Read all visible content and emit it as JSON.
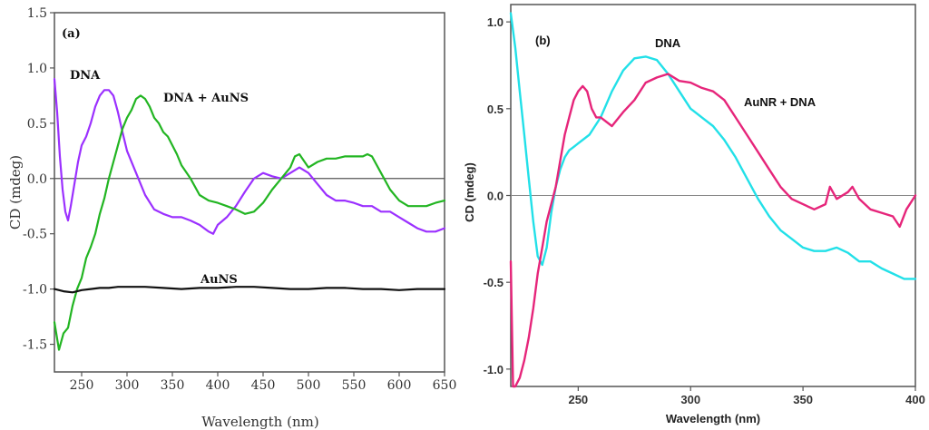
{
  "chart_data": [
    {
      "type": "line",
      "panel_label": "(a)",
      "xlabel": "Wavelength (nm)",
      "ylabel": "CD (mdeg)",
      "xlim": [
        220,
        650
      ],
      "ylim": [
        -1.75,
        1.5
      ],
      "xticks": [
        250,
        300,
        350,
        400,
        450,
        500,
        550,
        600,
        650
      ],
      "xtick_labels": [
        "250",
        "300",
        "350",
        "400",
        "450",
        "500",
        "550",
        "600",
        "650"
      ],
      "yticks": [
        1.5,
        1.0,
        0.5,
        0.0,
        -0.5,
        -1.0,
        -1.5
      ],
      "ytick_labels": [
        "1.5",
        "1.0",
        "0.5",
        "0.0",
        "-0.5",
        "-1.0",
        "-1.5"
      ],
      "zero_line": 0,
      "series": [
        {
          "name": "DNA",
          "label": "DNA",
          "color": "#9b30ff",
          "x": [
            220,
            223,
            226,
            229,
            232,
            235,
            238,
            242,
            246,
            250,
            255,
            260,
            265,
            270,
            275,
            280,
            285,
            290,
            295,
            300,
            310,
            320,
            330,
            340,
            350,
            360,
            370,
            380,
            390,
            395,
            400,
            410,
            420,
            430,
            440,
            450,
            460,
            470,
            480,
            490,
            500,
            510,
            520,
            530,
            540,
            550,
            560,
            570,
            580,
            590,
            600,
            610,
            620,
            630,
            640,
            650
          ],
          "y": [
            0.9,
            0.6,
            0.2,
            -0.1,
            -0.3,
            -0.38,
            -0.25,
            -0.05,
            0.15,
            0.3,
            0.38,
            0.5,
            0.65,
            0.75,
            0.8,
            0.8,
            0.75,
            0.6,
            0.42,
            0.25,
            0.05,
            -0.15,
            -0.28,
            -0.32,
            -0.35,
            -0.35,
            -0.38,
            -0.42,
            -0.48,
            -0.5,
            -0.42,
            -0.35,
            -0.25,
            -0.12,
            0.0,
            0.05,
            0.02,
            0.0,
            0.05,
            0.1,
            0.05,
            -0.05,
            -0.15,
            -0.2,
            -0.2,
            -0.22,
            -0.25,
            -0.25,
            -0.3,
            -0.3,
            -0.35,
            -0.4,
            -0.45,
            -0.48,
            -0.48,
            -0.45
          ]
        },
        {
          "name": "DNA + AuNS",
          "label": "DNA + AuNS",
          "color": "#22b522",
          "x": [
            220,
            225,
            230,
            235,
            240,
            245,
            250,
            255,
            260,
            265,
            270,
            275,
            280,
            285,
            290,
            295,
            300,
            305,
            310,
            315,
            320,
            325,
            330,
            335,
            340,
            345,
            350,
            355,
            360,
            370,
            380,
            390,
            400,
            410,
            420,
            430,
            440,
            450,
            460,
            470,
            480,
            485,
            490,
            500,
            510,
            520,
            530,
            540,
            550,
            560,
            565,
            570,
            580,
            590,
            600,
            610,
            620,
            630,
            640,
            650
          ],
          "y": [
            -1.3,
            -1.55,
            -1.4,
            -1.35,
            -1.15,
            -1.0,
            -0.9,
            -0.72,
            -0.62,
            -0.5,
            -0.32,
            -0.18,
            0.0,
            0.15,
            0.3,
            0.45,
            0.55,
            0.62,
            0.72,
            0.75,
            0.72,
            0.65,
            0.55,
            0.5,
            0.42,
            0.38,
            0.3,
            0.22,
            0.12,
            0.0,
            -0.15,
            -0.2,
            -0.22,
            -0.25,
            -0.28,
            -0.32,
            -0.3,
            -0.22,
            -0.1,
            0.0,
            0.1,
            0.2,
            0.22,
            0.1,
            0.15,
            0.18,
            0.18,
            0.2,
            0.2,
            0.2,
            0.22,
            0.2,
            0.05,
            -0.1,
            -0.2,
            -0.25,
            -0.25,
            -0.25,
            -0.22,
            -0.2
          ]
        },
        {
          "name": "AuNS",
          "label": "AuNS",
          "color": "#111111",
          "x": [
            220,
            230,
            240,
            250,
            260,
            270,
            280,
            290,
            300,
            320,
            340,
            360,
            380,
            400,
            420,
            440,
            460,
            480,
            500,
            520,
            540,
            560,
            580,
            600,
            620,
            640,
            650
          ],
          "y": [
            -1.0,
            -1.02,
            -1.03,
            -1.01,
            -1.0,
            -0.99,
            -0.99,
            -0.98,
            -0.98,
            -0.98,
            -0.99,
            -1.0,
            -0.99,
            -0.99,
            -0.98,
            -0.98,
            -0.99,
            -1.0,
            -1.0,
            -0.99,
            -0.99,
            -1.0,
            -1.0,
            -1.01,
            -1.0,
            -1.0,
            -1.0
          ]
        }
      ]
    },
    {
      "type": "line",
      "panel_label": "(b)",
      "xlabel": "Wavelength (nm)",
      "ylabel": "CD (mdeg)",
      "xlim": [
        220,
        400
      ],
      "ylim": [
        -1.1,
        1.1
      ],
      "xticks": [
        250,
        300,
        350,
        400
      ],
      "xtick_labels": [
        "250",
        "300",
        "350",
        "400"
      ],
      "yticks": [
        1.0,
        0.5,
        0.0,
        -0.5,
        -1.0
      ],
      "ytick_labels": [
        "1.0",
        "0.5",
        "0.0",
        "-0.5",
        "-1.0"
      ],
      "zero_line": 0,
      "series": [
        {
          "name": "DNA",
          "label": "DNA",
          "color": "#22e0e8",
          "x": [
            220,
            222,
            224,
            226,
            228,
            230,
            232,
            234,
            236,
            238,
            240,
            242,
            244,
            246,
            248,
            250,
            255,
            260,
            265,
            270,
            275,
            280,
            285,
            290,
            295,
            300,
            305,
            310,
            315,
            320,
            325,
            330,
            335,
            340,
            345,
            350,
            355,
            360,
            365,
            370,
            375,
            380,
            385,
            390,
            395,
            400
          ],
          "y": [
            1.05,
            0.85,
            0.6,
            0.35,
            0.1,
            -0.15,
            -0.35,
            -0.4,
            -0.3,
            -0.1,
            0.05,
            0.15,
            0.22,
            0.26,
            0.28,
            0.3,
            0.35,
            0.45,
            0.6,
            0.72,
            0.79,
            0.8,
            0.78,
            0.7,
            0.6,
            0.5,
            0.45,
            0.4,
            0.32,
            0.22,
            0.1,
            -0.02,
            -0.12,
            -0.2,
            -0.25,
            -0.3,
            -0.32,
            -0.32,
            -0.3,
            -0.33,
            -0.38,
            -0.38,
            -0.42,
            -0.45,
            -0.48,
            -0.48
          ]
        },
        {
          "name": "AuNR + DNA",
          "label": "AuNR + DNA",
          "color": "#e6257a",
          "x": [
            220,
            221,
            222,
            224,
            226,
            228,
            230,
            232,
            234,
            236,
            238,
            240,
            242,
            244,
            246,
            248,
            250,
            252,
            254,
            256,
            258,
            260,
            265,
            270,
            275,
            280,
            285,
            290,
            295,
            300,
            305,
            310,
            315,
            320,
            325,
            330,
            335,
            340,
            345,
            350,
            355,
            360,
            362,
            365,
            370,
            372,
            375,
            380,
            385,
            390,
            393,
            396,
            400
          ],
          "y": [
            -0.38,
            -1.1,
            -1.1,
            -1.05,
            -0.95,
            -0.82,
            -0.65,
            -0.45,
            -0.3,
            -0.15,
            -0.05,
            0.05,
            0.2,
            0.35,
            0.45,
            0.55,
            0.6,
            0.63,
            0.6,
            0.5,
            0.45,
            0.45,
            0.4,
            0.48,
            0.55,
            0.65,
            0.68,
            0.7,
            0.66,
            0.65,
            0.62,
            0.6,
            0.55,
            0.45,
            0.35,
            0.25,
            0.15,
            0.05,
            -0.02,
            -0.05,
            -0.08,
            -0.05,
            0.05,
            -0.02,
            0.02,
            0.05,
            -0.02,
            -0.08,
            -0.1,
            -0.12,
            -0.18,
            -0.08,
            0.0
          ]
        }
      ]
    }
  ]
}
